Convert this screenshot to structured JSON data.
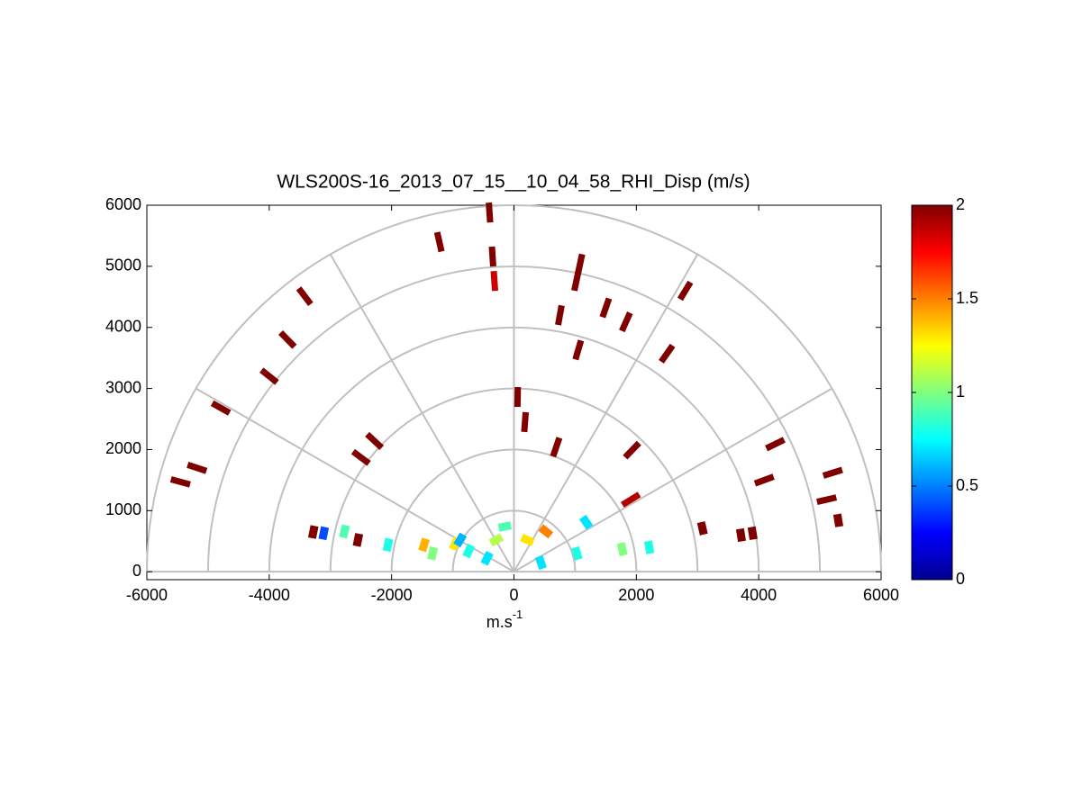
{
  "chart_data": {
    "type": "polar_scatter",
    "title": "WLS200S-16_2013_07_15__10_04_58_RHI_Disp (m/s)",
    "xlabel": "m.s",
    "xlabel_sup": "-1",
    "xlim": [
      -6000,
      6000
    ],
    "ylim": [
      -130,
      6000
    ],
    "xticks": [
      -6000,
      -4000,
      -2000,
      0,
      2000,
      4000,
      6000
    ],
    "yticks": [
      0,
      1000,
      2000,
      3000,
      4000,
      5000,
      6000
    ],
    "polar_rings": [
      1000,
      2000,
      3000,
      4000,
      5000,
      6000
    ],
    "polar_spokes_deg": [
      0,
      30,
      60,
      90,
      120,
      150,
      180
    ],
    "clim": [
      0,
      2
    ],
    "cticks": [
      0,
      0.5,
      1,
      1.5,
      2
    ],
    "colormap": "jet",
    "x": [
      -400,
      -1220,
      -350,
      -320,
      -3420,
      -3700,
      -4000,
      -4790,
      -5180,
      -5450,
      -2280,
      -2500,
      1080,
      1020,
      1500,
      1830,
      750,
      1050,
      2800,
      2500,
      60,
      180,
      1930,
      4270,
      4090,
      5210,
      5110,
      5300,
      3080,
      3710,
      3900,
      -3280,
      690,
      -3110,
      -2770,
      -2550,
      -2060,
      -1330,
      -740,
      -960,
      -290,
      220,
      1030,
      1770,
      2210,
      1180,
      1910,
      -440,
      440,
      -1470,
      -880,
      -150,
      520
    ],
    "y": [
      5880,
      5400,
      5160,
      4760,
      4510,
      3800,
      3200,
      2680,
      1700,
      1470,
      2140,
      1870,
      5040,
      4760,
      4320,
      4090,
      4200,
      3630,
      4600,
      3570,
      2860,
      2450,
      1990,
      2090,
      1500,
      1620,
      1180,
      840,
      710,
      600,
      630,
      650,
      2040,
      630,
      660,
      520,
      440,
      300,
      340,
      460,
      520,
      520,
      300,
      370,
      400,
      810,
      1180,
      220,
      150,
      440,
      520,
      740,
      660
    ],
    "values": [
      2,
      2,
      2,
      1.85,
      2,
      2,
      2,
      2,
      2,
      2,
      2,
      2,
      2,
      2,
      2,
      2,
      2,
      2,
      2,
      2,
      2,
      2,
      2,
      2,
      2,
      2,
      2,
      2,
      2,
      2,
      2,
      2,
      2,
      0.4,
      0.9,
      2,
      0.8,
      1.0,
      0.8,
      1.3,
      1.1,
      1.3,
      0.8,
      1.0,
      0.8,
      0.7,
      1.9,
      0.7,
      0.7,
      1.4,
      0.6,
      0.9,
      1.5
    ]
  }
}
